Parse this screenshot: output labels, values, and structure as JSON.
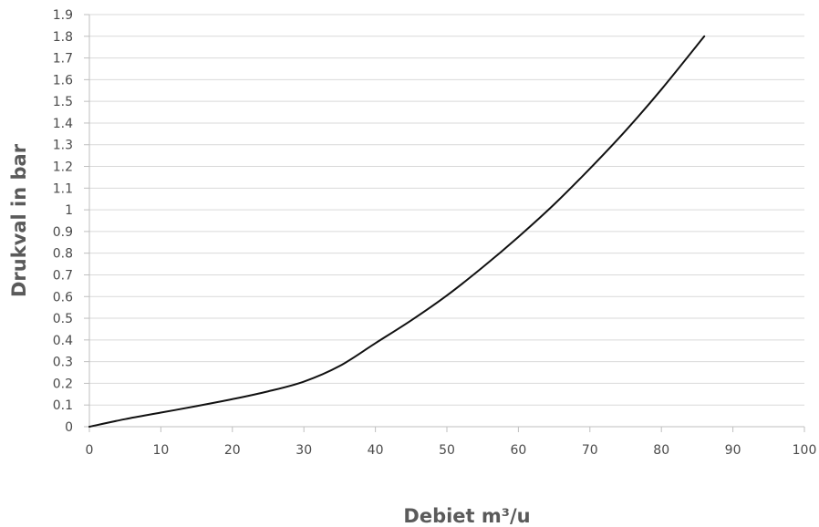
{
  "chart_data": {
    "type": "line",
    "title": "",
    "xlabel": "Debiet m³/u",
    "ylabel": "Drukval in bar",
    "xlim": [
      0,
      100
    ],
    "ylim": [
      0,
      1.9
    ],
    "x_ticks": [
      "0",
      "10",
      "20",
      "30",
      "40",
      "50",
      "60",
      "70",
      "80",
      "90",
      "100"
    ],
    "y_ticks": [
      "0",
      "0.1",
      "0.2",
      "0.3",
      "0.4",
      "0.5",
      "0.6",
      "0.7",
      "0.8",
      "0.9",
      "1",
      "1.1",
      "1.2",
      "1.3",
      "1.4",
      "1.5",
      "1.6",
      "1.7",
      "1.8",
      "1.9"
    ],
    "grid": "horizontal",
    "legend": "none",
    "colors": {
      "line": "#111111",
      "grid": "#d9d9d9",
      "axis": "#bfbfbf"
    },
    "series": [
      {
        "x": [
          0,
          5,
          10,
          15,
          20,
          25,
          30,
          35,
          40,
          45,
          50,
          55,
          60,
          65,
          70,
          75,
          80,
          86
        ],
        "y": [
          0,
          0.035,
          0.065,
          0.095,
          0.127,
          0.163,
          0.208,
          0.28,
          0.385,
          0.49,
          0.605,
          0.735,
          0.875,
          1.025,
          1.19,
          1.365,
          1.555,
          1.8
        ]
      }
    ]
  }
}
